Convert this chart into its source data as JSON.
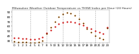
{
  "title": "Milwaukee Weather Outdoor Temperature vs THSW Index per Hour (24 Hours)",
  "title_fontsize": 3.2,
  "background_color": "#ffffff",
  "xlim": [
    0,
    23
  ],
  "ylim": [
    25,
    95
  ],
  "ytick_labels": [
    "30",
    "40",
    "50",
    "60",
    "70",
    "80",
    "90"
  ],
  "ytick_vals": [
    30,
    40,
    50,
    60,
    70,
    80,
    90
  ],
  "xtick_vals": [
    0,
    1,
    2,
    3,
    4,
    5,
    6,
    7,
    8,
    9,
    10,
    11,
    12,
    13,
    14,
    15,
    16,
    17,
    18,
    19,
    20,
    21,
    22,
    23
  ],
  "xtick_labels": [
    "0",
    "1",
    "2",
    "3",
    "4",
    "5",
    "6",
    "7",
    "8",
    "9",
    "10",
    "11",
    "12",
    "13",
    "14",
    "15",
    "16",
    "17",
    "18",
    "19",
    "20",
    "21",
    "22",
    "23"
  ],
  "grid_x": [
    4,
    8,
    12,
    16,
    20
  ],
  "hours": [
    0,
    1,
    2,
    3,
    4,
    5,
    6,
    7,
    8,
    9,
    10,
    11,
    12,
    13,
    14,
    15,
    16,
    17,
    18,
    19,
    20,
    21,
    22,
    23
  ],
  "temp": [
    36,
    35,
    34,
    34,
    33,
    33,
    34,
    37,
    45,
    52,
    59,
    65,
    68,
    70,
    69,
    68,
    65,
    62,
    58,
    54,
    50,
    47,
    44,
    58
  ],
  "thsw": [
    28,
    27,
    26,
    26,
    25,
    25,
    26,
    29,
    44,
    58,
    70,
    80,
    86,
    89,
    87,
    83,
    76,
    67,
    55,
    47,
    40,
    35,
    32,
    56
  ],
  "temp_color": "#cc0000",
  "thsw_color": "#ff8800",
  "black_color": "#111111",
  "dot_size": 2.5,
  "tick_fontsize": 3.0,
  "legend_fontsize": 3.0,
  "grid_color": "#aaaaaa",
  "grid_linestyle": "--",
  "grid_linewidth": 0.4
}
